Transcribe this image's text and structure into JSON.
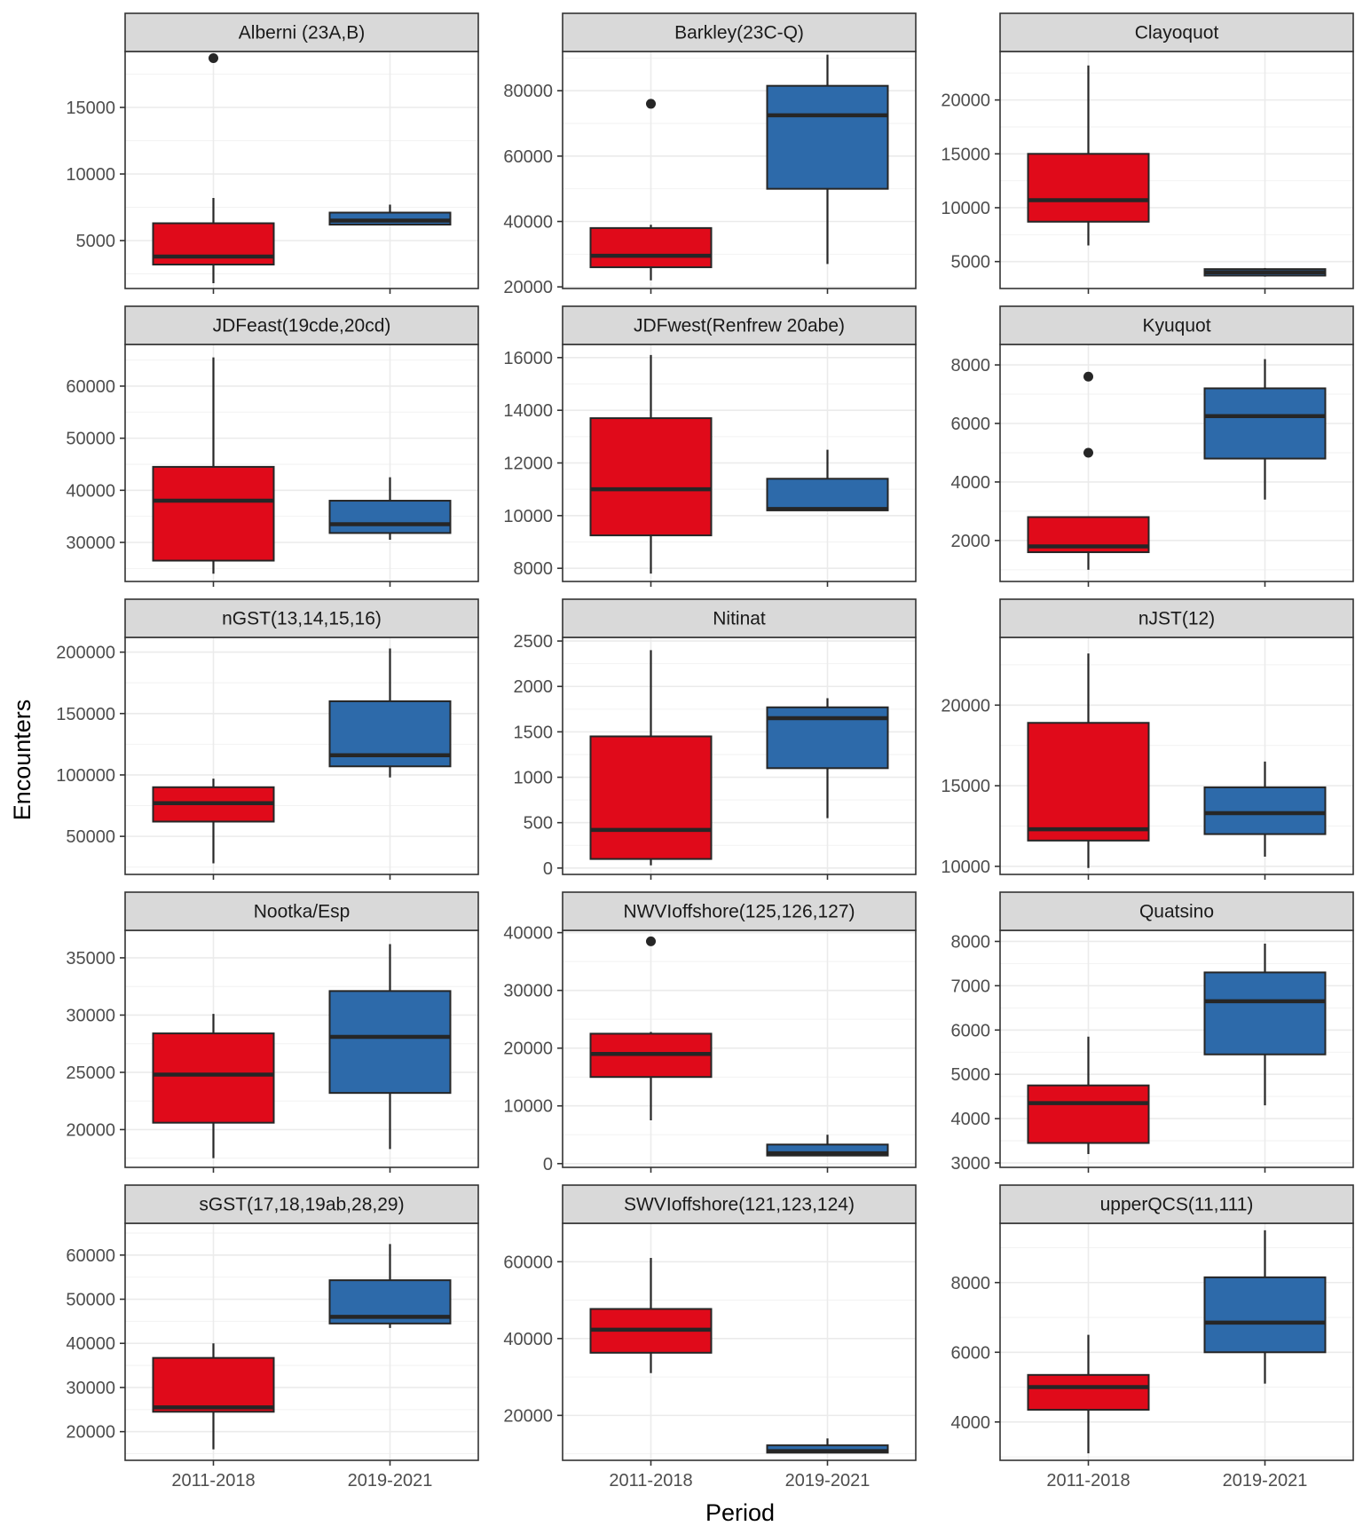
{
  "chart_data": {
    "type": "box",
    "layout": "facet-grid-3-columns",
    "xlabel": "Period",
    "ylabel": "Encounters",
    "categories": [
      "2011-2018",
      "2019-2021"
    ],
    "category_colors": [
      "#e00a1a",
      "#2d6aaa"
    ],
    "facets": [
      {
        "title": "Alberni (23A,B)",
        "ylim": [
          1400,
          19200
        ],
        "yticks": [
          5000,
          10000,
          15000
        ],
        "boxes": [
          {
            "category": "2011-2018",
            "min": 1800,
            "q1": 3200,
            "median": 3800,
            "q3": 6300,
            "max": 8200,
            "outliers": [
              18700
            ]
          },
          {
            "category": "2019-2021",
            "min": 6200,
            "q1": 6200,
            "median": 6500,
            "q3": 7100,
            "max": 7700,
            "outliers": []
          }
        ]
      },
      {
        "title": "Barkley(23C-Q)",
        "ylim": [
          19500,
          92000
        ],
        "yticks": [
          20000,
          40000,
          60000,
          80000
        ],
        "boxes": [
          {
            "category": "2011-2018",
            "min": 22000,
            "q1": 26000,
            "median": 29500,
            "q3": 38000,
            "max": 39000,
            "outliers": [
              76000
            ]
          },
          {
            "category": "2019-2021",
            "min": 27000,
            "q1": 50000,
            "median": 72500,
            "q3": 81500,
            "max": 91000,
            "outliers": []
          }
        ]
      },
      {
        "title": "Clayoquot",
        "ylim": [
          2500,
          24500
        ],
        "yticks": [
          5000,
          10000,
          15000,
          20000
        ],
        "boxes": [
          {
            "category": "2011-2018",
            "min": 6500,
            "q1": 8700,
            "median": 10700,
            "q3": 15000,
            "max": 23200,
            "outliers": []
          },
          {
            "category": "2019-2021",
            "min": 3600,
            "q1": 3700,
            "median": 4000,
            "q3": 4300,
            "max": 4400,
            "outliers": []
          }
        ]
      },
      {
        "title": "JDFeast(19cde,20cd)",
        "ylim": [
          22500,
          68000
        ],
        "yticks": [
          30000,
          40000,
          50000,
          60000
        ],
        "boxes": [
          {
            "category": "2011-2018",
            "min": 24000,
            "q1": 26500,
            "median": 38000,
            "q3": 44500,
            "max": 65500,
            "outliers": []
          },
          {
            "category": "2019-2021",
            "min": 30500,
            "q1": 31800,
            "median": 33500,
            "q3": 38000,
            "max": 42500,
            "outliers": []
          }
        ]
      },
      {
        "title": "JDFwest(Renfrew 20abe)",
        "ylim": [
          7500,
          16500
        ],
        "yticks": [
          8000,
          10000,
          12000,
          14000,
          16000
        ],
        "boxes": [
          {
            "category": "2011-2018",
            "min": 7800,
            "q1": 9250,
            "median": 11000,
            "q3": 13700,
            "max": 16100,
            "outliers": []
          },
          {
            "category": "2019-2021",
            "min": 10200,
            "q1": 10200,
            "median": 10250,
            "q3": 11400,
            "max": 12500,
            "outliers": []
          }
        ]
      },
      {
        "title": "Kyuquot",
        "ylim": [
          600,
          8700
        ],
        "yticks": [
          2000,
          4000,
          6000,
          8000
        ],
        "boxes": [
          {
            "category": "2011-2018",
            "min": 1000,
            "q1": 1600,
            "median": 1800,
            "q3": 2800,
            "max": 2800,
            "outliers": [
              5000,
              7600
            ]
          },
          {
            "category": "2019-2021",
            "min": 3400,
            "q1": 4800,
            "median": 6250,
            "q3": 7200,
            "max": 8200,
            "outliers": []
          }
        ]
      },
      {
        "title": "nGST(13,14,15,16)",
        "ylim": [
          19000,
          212000
        ],
        "yticks": [
          50000,
          100000,
          150000,
          200000
        ],
        "boxes": [
          {
            "category": "2011-2018",
            "min": 28000,
            "q1": 62000,
            "median": 77000,
            "q3": 90000,
            "max": 97000,
            "outliers": []
          },
          {
            "category": "2019-2021",
            "min": 98000,
            "q1": 107000,
            "median": 116000,
            "q3": 160000,
            "max": 203000,
            "outliers": []
          }
        ]
      },
      {
        "title": "Nitinat",
        "ylim": [
          -70,
          2540
        ],
        "yticks": [
          0,
          500,
          1000,
          1500,
          2000,
          2500
        ],
        "boxes": [
          {
            "category": "2011-2018",
            "min": 30,
            "q1": 100,
            "median": 420,
            "q3": 1450,
            "max": 2400,
            "outliers": []
          },
          {
            "category": "2019-2021",
            "min": 550,
            "q1": 1100,
            "median": 1650,
            "q3": 1770,
            "max": 1870,
            "outliers": []
          }
        ]
      },
      {
        "title": "nJST(12)",
        "ylim": [
          9500,
          24200
        ],
        "yticks": [
          10000,
          15000,
          20000
        ],
        "boxes": [
          {
            "category": "2011-2018",
            "min": 9900,
            "q1": 11600,
            "median": 12300,
            "q3": 18900,
            "max": 23200,
            "outliers": []
          },
          {
            "category": "2019-2021",
            "min": 10600,
            "q1": 12000,
            "median": 13300,
            "q3": 14900,
            "max": 16500,
            "outliers": []
          }
        ]
      },
      {
        "title": "Nootka/Esp",
        "ylim": [
          16700,
          37400
        ],
        "yticks": [
          20000,
          25000,
          30000,
          35000
        ],
        "boxes": [
          {
            "category": "2011-2018",
            "min": 17500,
            "q1": 20600,
            "median": 24800,
            "q3": 28400,
            "max": 30100,
            "outliers": []
          },
          {
            "category": "2019-2021",
            "min": 18300,
            "q1": 23200,
            "median": 28100,
            "q3": 32100,
            "max": 36200,
            "outliers": []
          }
        ]
      },
      {
        "title": "NWVIoffshore(125,126,127)",
        "ylim": [
          -650,
          40400
        ],
        "yticks": [
          0,
          10000,
          20000,
          30000,
          40000
        ],
        "boxes": [
          {
            "category": "2011-2018",
            "min": 7500,
            "q1": 15000,
            "median": 19000,
            "q3": 22500,
            "max": 22800,
            "outliers": [
              38500
            ]
          },
          {
            "category": "2019-2021",
            "min": 1300,
            "q1": 1400,
            "median": 1800,
            "q3": 3300,
            "max": 5000,
            "outliers": []
          }
        ]
      },
      {
        "title": "Quatsino",
        "ylim": [
          2900,
          8250
        ],
        "yticks": [
          3000,
          4000,
          5000,
          6000,
          7000,
          8000
        ],
        "boxes": [
          {
            "category": "2011-2018",
            "min": 3200,
            "q1": 3450,
            "median": 4350,
            "q3": 4750,
            "max": 5850,
            "outliers": []
          },
          {
            "category": "2019-2021",
            "min": 4300,
            "q1": 5450,
            "median": 6650,
            "q3": 7300,
            "max": 7950,
            "outliers": []
          }
        ]
      },
      {
        "title": "sGST(17,18,19ab,28,29)",
        "ylim": [
          13500,
          67200
        ],
        "yticks": [
          20000,
          30000,
          40000,
          50000,
          60000
        ],
        "boxes": [
          {
            "category": "2011-2018",
            "min": 16000,
            "q1": 24500,
            "median": 25500,
            "q3": 36700,
            "max": 40000,
            "outliers": []
          },
          {
            "category": "2019-2021",
            "min": 43500,
            "q1": 44500,
            "median": 46000,
            "q3": 54300,
            "max": 62500,
            "outliers": []
          }
        ]
      },
      {
        "title": "SWVIoffshore(121,123,124)",
        "ylim": [
          8300,
          70000
        ],
        "yticks": [
          20000,
          40000,
          60000
        ],
        "boxes": [
          {
            "category": "2011-2018",
            "min": 31000,
            "q1": 36300,
            "median": 42300,
            "q3": 47700,
            "max": 61000,
            "outliers": []
          },
          {
            "category": "2019-2021",
            "min": 10200,
            "q1": 10300,
            "median": 10700,
            "q3": 12200,
            "max": 14000,
            "outliers": []
          }
        ]
      },
      {
        "title": "upperQCS(11,111)",
        "ylim": [
          2900,
          9700
        ],
        "yticks": [
          4000,
          6000,
          8000
        ],
        "boxes": [
          {
            "category": "2011-2018",
            "min": 3100,
            "q1": 4350,
            "median": 5000,
            "q3": 5350,
            "max": 6500,
            "outliers": []
          },
          {
            "category": "2019-2021",
            "min": 5100,
            "q1": 6000,
            "median": 6850,
            "q3": 8150,
            "max": 9500,
            "outliers": []
          }
        ]
      }
    ]
  }
}
